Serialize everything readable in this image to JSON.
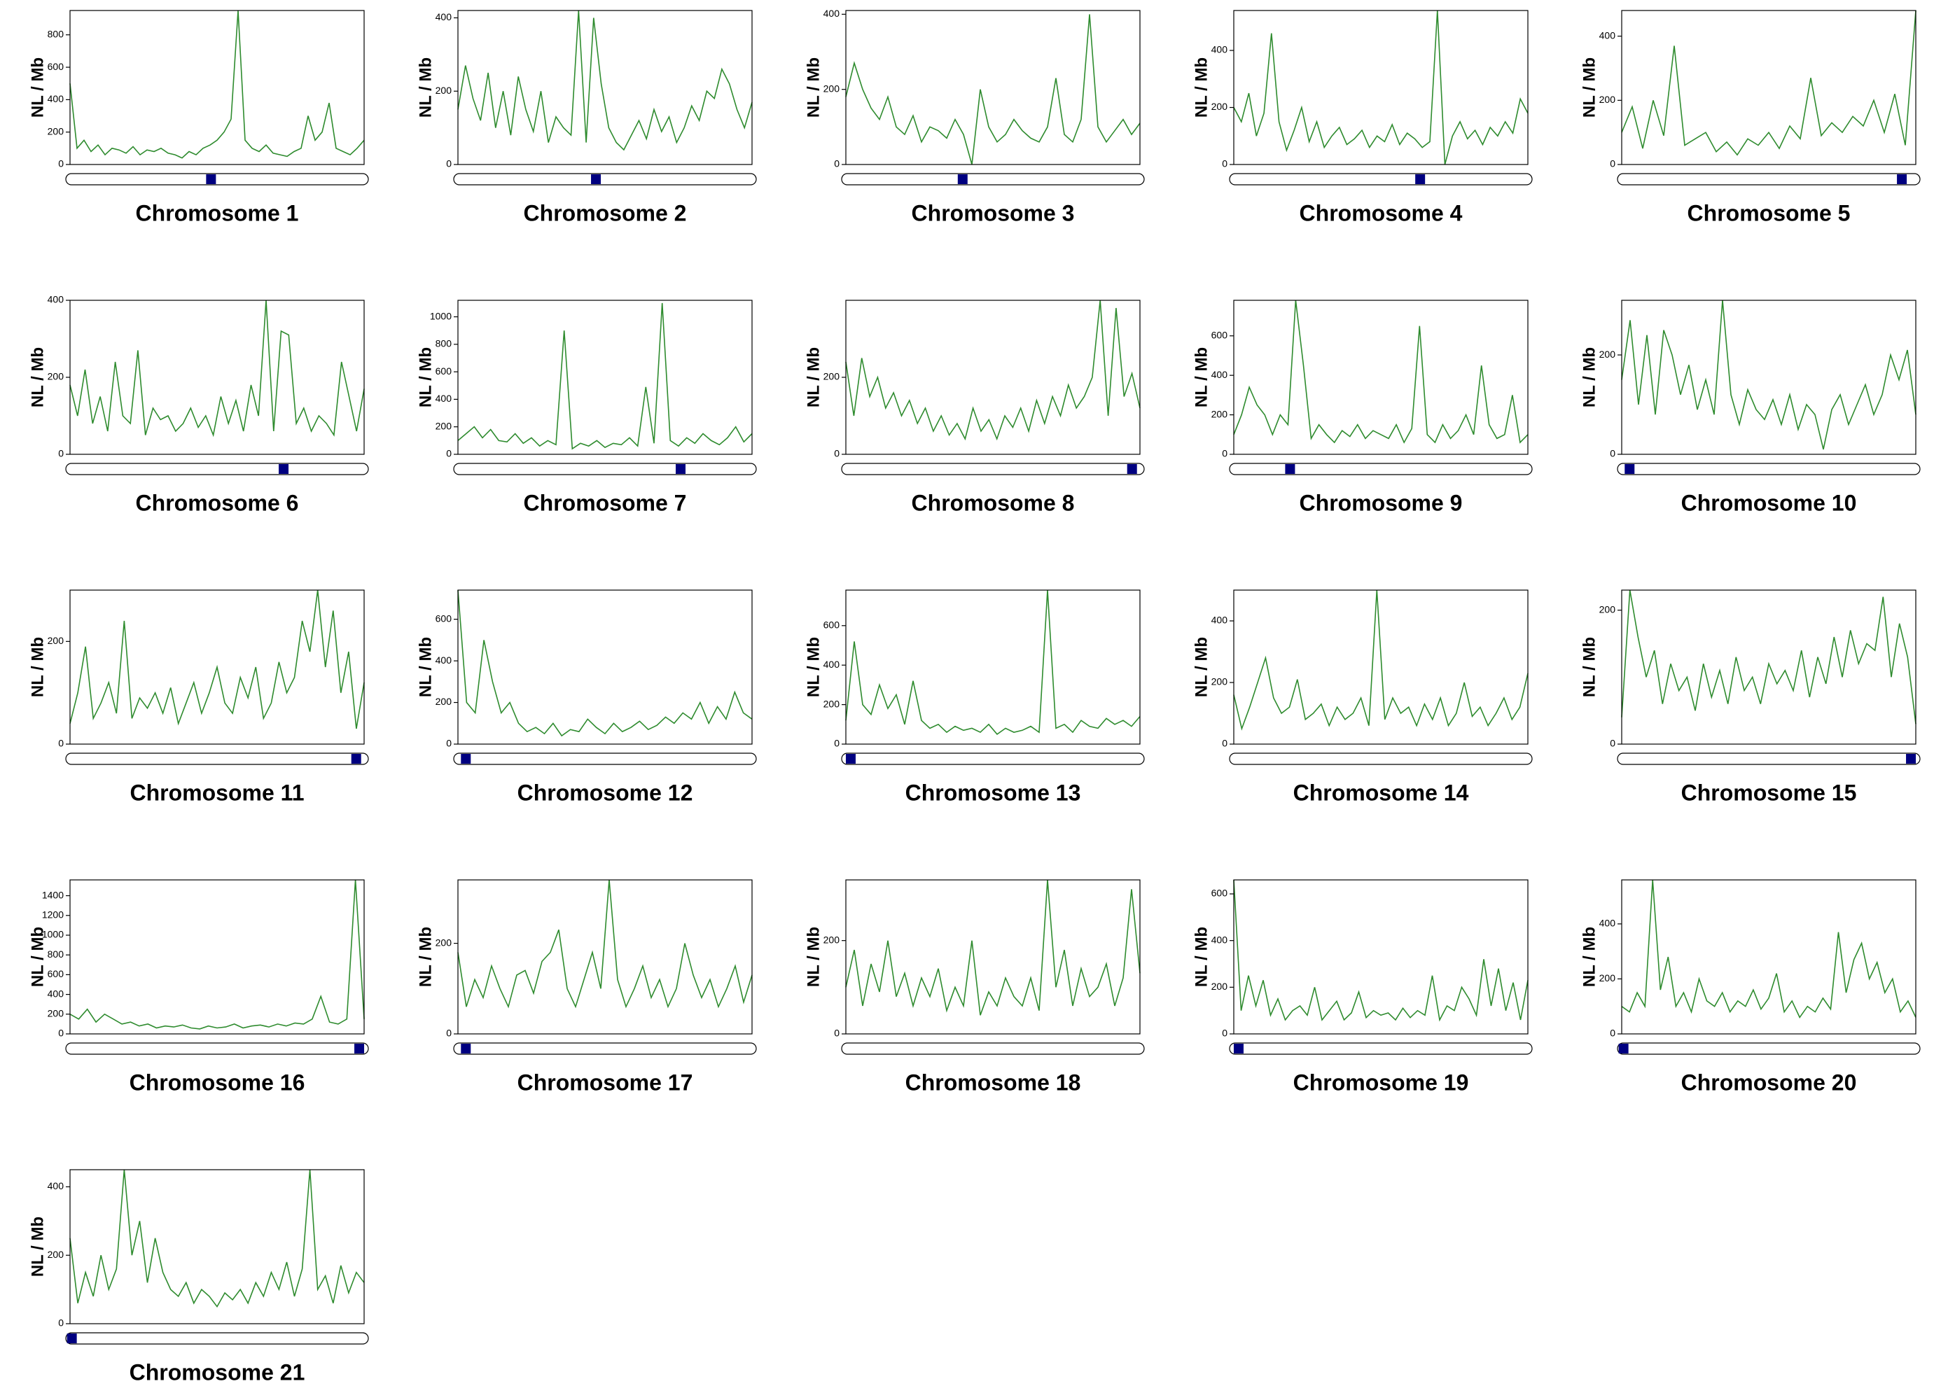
{
  "chart_data": [
    {
      "type": "line",
      "title": "Chromosome 1",
      "ylabel": "NL / Mb",
      "color": "#2e8b2e",
      "ylim": [
        0,
        950
      ],
      "yticks": [
        0,
        200,
        400,
        600,
        800
      ],
      "centromere": 0.48,
      "values": [
        500,
        100,
        150,
        80,
        120,
        60,
        100,
        90,
        70,
        110,
        60,
        90,
        80,
        100,
        70,
        60,
        40,
        80,
        60,
        100,
        120,
        150,
        200,
        280,
        950,
        150,
        100,
        80,
        120,
        70,
        60,
        50,
        80,
        100,
        300,
        150,
        200,
        380,
        100,
        80,
        60,
        100,
        150
      ]
    },
    {
      "type": "line",
      "title": "Chromosome 2",
      "ylabel": "NL / Mb",
      "color": "#2e8b2e",
      "ylim": [
        0,
        420
      ],
      "yticks": [
        0,
        200,
        400
      ],
      "centromere": 0.47,
      "values": [
        150,
        270,
        180,
        120,
        250,
        100,
        200,
        80,
        240,
        150,
        90,
        200,
        60,
        130,
        100,
        80,
        420,
        60,
        400,
        220,
        100,
        60,
        40,
        80,
        120,
        70,
        150,
        90,
        130,
        60,
        100,
        160,
        120,
        200,
        180,
        260,
        220,
        150,
        100,
        170
      ]
    },
    {
      "type": "line",
      "title": "Chromosome 3",
      "ylabel": "NL / Mb",
      "color": "#2e8b2e",
      "ylim": [
        0,
        410
      ],
      "yticks": [
        0,
        200,
        400
      ],
      "centromere": 0.4,
      "values": [
        180,
        270,
        200,
        150,
        120,
        180,
        100,
        80,
        130,
        60,
        100,
        90,
        70,
        120,
        80,
        0,
        200,
        100,
        60,
        80,
        120,
        90,
        70,
        60,
        100,
        230,
        80,
        60,
        120,
        400,
        100,
        60,
        90,
        120,
        80,
        110
      ]
    },
    {
      "type": "line",
      "title": "Chromosome 4",
      "ylabel": "NL / Mb",
      "color": "#2e8b2e",
      "ylim": [
        0,
        540
      ],
      "yticks": [
        0,
        200,
        400
      ],
      "centromere": 0.63,
      "values": [
        200,
        150,
        250,
        100,
        180,
        460,
        150,
        50,
        120,
        200,
        80,
        150,
        60,
        100,
        130,
        70,
        90,
        120,
        60,
        100,
        80,
        140,
        70,
        110,
        90,
        60,
        80,
        540,
        0,
        100,
        150,
        90,
        120,
        70,
        130,
        100,
        150,
        110,
        230,
        180
      ]
    },
    {
      "type": "line",
      "title": "Chromosome 5",
      "ylabel": "NL / Mb",
      "color": "#2e8b2e",
      "ylim": [
        0,
        480
      ],
      "yticks": [
        0,
        200,
        400
      ],
      "centromere": 0.94,
      "values": [
        100,
        180,
        50,
        200,
        90,
        370,
        60,
        80,
        100,
        40,
        70,
        30,
        80,
        60,
        100,
        50,
        120,
        80,
        270,
        90,
        130,
        100,
        150,
        120,
        200,
        100,
        220,
        60,
        480
      ]
    },
    {
      "type": "line",
      "title": "Chromosome 6",
      "ylabel": "NL / Mb",
      "color": "#2e8b2e",
      "ylim": [
        0,
        400
      ],
      "yticks": [
        0,
        200,
        400
      ],
      "centromere": 0.72,
      "values": [
        180,
        100,
        220,
        80,
        150,
        60,
        240,
        100,
        80,
        270,
        50,
        120,
        90,
        100,
        60,
        80,
        120,
        70,
        100,
        50,
        150,
        80,
        140,
        60,
        180,
        100,
        400,
        60,
        320,
        310,
        80,
        120,
        60,
        100,
        80,
        50,
        240,
        150,
        60,
        170
      ]
    },
    {
      "type": "line",
      "title": "Chromosome 7",
      "ylabel": "NL / Mb",
      "color": "#2e8b2e",
      "ylim": [
        0,
        1120
      ],
      "yticks": [
        0,
        200,
        400,
        600,
        800,
        1000
      ],
      "centromere": 0.75,
      "values": [
        100,
        150,
        200,
        120,
        180,
        100,
        90,
        150,
        80,
        120,
        60,
        100,
        70,
        900,
        40,
        80,
        60,
        100,
        50,
        80,
        70,
        120,
        60,
        490,
        80,
        1100,
        100,
        60,
        120,
        80,
        150,
        100,
        70,
        120,
        200,
        90,
        150
      ]
    },
    {
      "type": "line",
      "title": "Chromosome 8",
      "ylabel": "NL / Mb",
      "color": "#2e8b2e",
      "ylim": [
        0,
        400
      ],
      "yticks": [
        0,
        200
      ],
      "centromere": 0.96,
      "values": [
        240,
        100,
        250,
        150,
        200,
        120,
        160,
        100,
        140,
        80,
        120,
        60,
        100,
        50,
        80,
        40,
        120,
        60,
        90,
        40,
        100,
        70,
        120,
        60,
        140,
        80,
        150,
        100,
        180,
        120,
        150,
        200,
        400,
        100,
        380,
        150,
        210,
        120
      ]
    },
    {
      "type": "line",
      "title": "Chromosome 9",
      "ylabel": "NL / Mb",
      "color": "#2e8b2e",
      "ylim": [
        0,
        780
      ],
      "yticks": [
        0,
        200,
        400,
        600
      ],
      "centromere": 0.2,
      "values": [
        100,
        200,
        340,
        250,
        200,
        100,
        200,
        150,
        780,
        450,
        80,
        150,
        100,
        60,
        120,
        90,
        150,
        80,
        120,
        100,
        80,
        150,
        60,
        130,
        650,
        100,
        60,
        150,
        80,
        120,
        200,
        100,
        450,
        150,
        80,
        100,
        300,
        60,
        100
      ]
    },
    {
      "type": "line",
      "title": "Chromosome 10",
      "ylabel": "NL / Mb",
      "color": "#2e8b2e",
      "ylim": [
        0,
        310
      ],
      "yticks": [
        0,
        200
      ],
      "centromere": 0.04,
      "values": [
        150,
        270,
        100,
        240,
        80,
        250,
        200,
        120,
        180,
        90,
        150,
        80,
        310,
        120,
        60,
        130,
        90,
        70,
        110,
        60,
        120,
        50,
        100,
        80,
        10,
        90,
        120,
        60,
        100,
        140,
        80,
        120,
        200,
        150,
        210,
        80
      ]
    },
    {
      "type": "line",
      "title": "Chromosome 11",
      "ylabel": "NL / Mb",
      "color": "#2e8b2e",
      "ylim": [
        0,
        300
      ],
      "yticks": [
        0,
        200
      ],
      "centromere": 0.96,
      "values": [
        40,
        100,
        190,
        50,
        80,
        120,
        60,
        240,
        50,
        90,
        70,
        100,
        60,
        110,
        40,
        80,
        120,
        60,
        100,
        150,
        80,
        60,
        130,
        90,
        150,
        50,
        80,
        160,
        100,
        130,
        240,
        180,
        300,
        150,
        260,
        100,
        180,
        30,
        120
      ]
    },
    {
      "type": "line",
      "title": "Chromosome 12",
      "ylabel": "NL / Mb",
      "color": "#2e8b2e",
      "ylim": [
        0,
        740
      ],
      "yticks": [
        0,
        200,
        400,
        600
      ],
      "centromere": 0.04,
      "values": [
        740,
        200,
        150,
        500,
        300,
        150,
        200,
        100,
        60,
        80,
        50,
        100,
        40,
        70,
        60,
        120,
        80,
        50,
        100,
        60,
        80,
        110,
        70,
        90,
        130,
        100,
        150,
        120,
        200,
        100,
        180,
        120,
        250,
        150,
        120
      ]
    },
    {
      "type": "line",
      "title": "Chromosome 13",
      "ylabel": "NL / Mb",
      "color": "#2e8b2e",
      "ylim": [
        0,
        780
      ],
      "yticks": [
        0,
        200,
        400,
        600
      ],
      "centromere": 0.03,
      "values": [
        120,
        520,
        200,
        150,
        300,
        180,
        250,
        100,
        320,
        120,
        80,
        100,
        60,
        90,
        70,
        80,
        60,
        100,
        50,
        80,
        60,
        70,
        90,
        60,
        780,
        80,
        100,
        60,
        120,
        90,
        80,
        130,
        100,
        120,
        90,
        140
      ]
    },
    {
      "type": "line",
      "title": "Chromosome 14",
      "ylabel": "NL / Mb",
      "color": "#2e8b2e",
      "ylim": [
        0,
        500
      ],
      "yticks": [
        0,
        200,
        400
      ],
      "values": [
        160,
        50,
        120,
        200,
        280,
        150,
        100,
        120,
        210,
        80,
        100,
        130,
        60,
        120,
        80,
        100,
        150,
        60,
        500,
        80,
        150,
        100,
        120,
        60,
        130,
        80,
        150,
        60,
        100,
        200,
        90,
        120,
        60,
        100,
        150,
        80,
        120,
        230
      ]
    },
    {
      "type": "line",
      "title": "Chromosome 15",
      "ylabel": "NL / Mb",
      "color": "#2e8b2e",
      "ylim": [
        0,
        230
      ],
      "yticks": [
        0,
        200
      ],
      "centromere": 0.97,
      "values": [
        40,
        230,
        160,
        100,
        140,
        60,
        120,
        80,
        100,
        50,
        120,
        70,
        110,
        60,
        130,
        80,
        100,
        60,
        120,
        90,
        110,
        80,
        140,
        70,
        130,
        90,
        160,
        100,
        170,
        120,
        150,
        140,
        220,
        100,
        180,
        130,
        30
      ]
    },
    {
      "type": "line",
      "title": "Chromosome 16",
      "ylabel": "NL / Mb",
      "color": "#2e8b2e",
      "ylim": [
        0,
        1560
      ],
      "yticks": [
        0,
        200,
        400,
        600,
        800,
        1000,
        1200,
        1400
      ],
      "centromere": 0.97,
      "values": [
        200,
        150,
        250,
        120,
        200,
        150,
        100,
        120,
        80,
        100,
        60,
        80,
        70,
        90,
        60,
        50,
        80,
        60,
        70,
        100,
        60,
        80,
        90,
        70,
        100,
        80,
        110,
        100,
        150,
        380,
        120,
        100,
        150,
        1560,
        150
      ]
    },
    {
      "type": "line",
      "title": "Chromosome 17",
      "ylabel": "NL / Mb",
      "color": "#2e8b2e",
      "ylim": [
        0,
        340
      ],
      "yticks": [
        0,
        200
      ],
      "centromere": 0.04,
      "values": [
        180,
        60,
        120,
        80,
        150,
        100,
        60,
        130,
        140,
        90,
        160,
        180,
        230,
        100,
        60,
        120,
        180,
        100,
        340,
        120,
        60,
        100,
        150,
        80,
        120,
        60,
        100,
        200,
        130,
        80,
        120,
        60,
        100,
        150,
        70,
        130
      ]
    },
    {
      "type": "line",
      "title": "Chromosome 18",
      "ylabel": "NL / Mb",
      "color": "#2e8b2e",
      "ylim": [
        0,
        330
      ],
      "yticks": [
        0,
        200
      ],
      "values": [
        100,
        180,
        60,
        150,
        90,
        200,
        80,
        130,
        60,
        120,
        80,
        140,
        50,
        100,
        60,
        200,
        40,
        90,
        60,
        120,
        80,
        60,
        120,
        50,
        330,
        100,
        180,
        60,
        140,
        80,
        100,
        150,
        60,
        120,
        310,
        130
      ]
    },
    {
      "type": "line",
      "title": "Chromosome 19",
      "ylabel": "NL / Mb",
      "color": "#2e8b2e",
      "ylim": [
        0,
        660
      ],
      "yticks": [
        0,
        200,
        400,
        600
      ],
      "centromere": 0.03,
      "values": [
        660,
        100,
        250,
        120,
        230,
        80,
        150,
        60,
        100,
        120,
        80,
        200,
        60,
        100,
        140,
        60,
        90,
        180,
        70,
        100,
        80,
        90,
        60,
        110,
        70,
        100,
        80,
        250,
        60,
        120,
        100,
        200,
        150,
        80,
        320,
        120,
        280,
        100,
        220,
        60,
        230
      ]
    },
    {
      "type": "line",
      "title": "Chromosome 20",
      "ylabel": "NL / Mb",
      "color": "#2e8b2e",
      "ylim": [
        0,
        560
      ],
      "yticks": [
        0,
        200,
        400
      ],
      "centromere": 0.02,
      "values": [
        100,
        80,
        150,
        100,
        560,
        160,
        280,
        100,
        150,
        80,
        200,
        120,
        100,
        150,
        80,
        120,
        100,
        160,
        90,
        130,
        220,
        80,
        120,
        60,
        100,
        80,
        130,
        90,
        370,
        150,
        270,
        330,
        200,
        260,
        150,
        200,
        80,
        120,
        60
      ]
    },
    {
      "type": "line",
      "title": "Chromosome 21",
      "ylabel": "NL / Mb",
      "color": "#2e8b2e",
      "ylim": [
        0,
        450
      ],
      "yticks": [
        0,
        200,
        400
      ],
      "centromere": 0.02,
      "values": [
        250,
        60,
        150,
        80,
        200,
        100,
        160,
        450,
        200,
        300,
        120,
        250,
        150,
        100,
        80,
        120,
        60,
        100,
        80,
        50,
        90,
        70,
        100,
        60,
        120,
        80,
        150,
        100,
        180,
        80,
        160,
        450,
        100,
        140,
        60,
        170,
        90,
        150,
        120
      ]
    }
  ]
}
